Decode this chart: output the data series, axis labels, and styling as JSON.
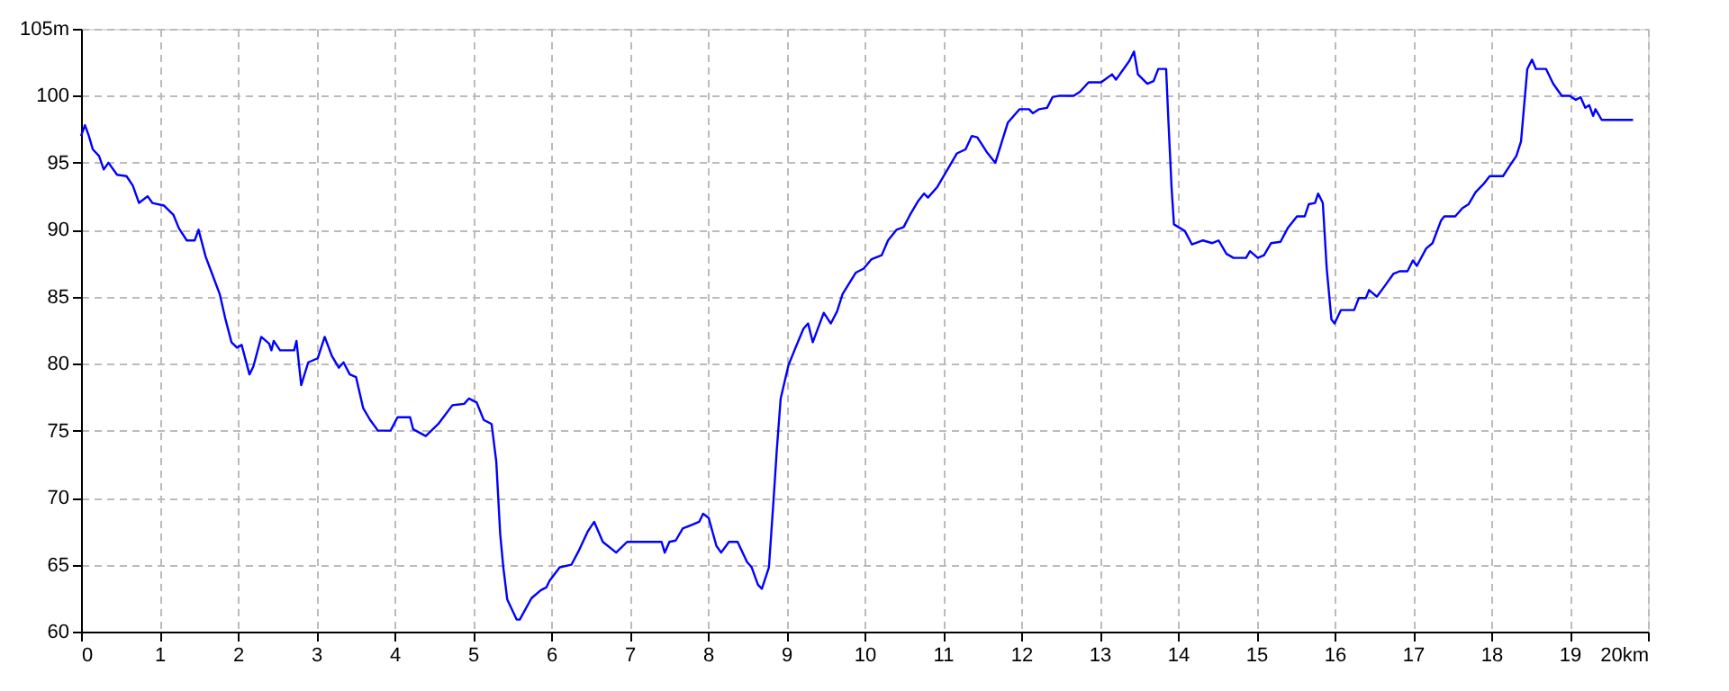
{
  "chart_data": {
    "type": "line",
    "x": [
      0,
      0.05,
      0.1,
      0.15,
      0.23,
      0.29,
      0.35,
      0.46,
      0.58,
      0.66,
      0.74,
      0.85,
      0.91,
      1.06,
      1.18,
      1.25,
      1.35,
      1.45,
      1.5,
      1.59,
      1.68,
      1.77,
      1.84,
      1.92,
      1.99,
      2.05,
      2.15,
      2.2,
      2.3,
      2.4,
      2.43,
      2.46,
      2.54,
      2.72,
      2.75,
      2.81,
      2.9,
      3.02,
      3.11,
      3.2,
      3.29,
      3.35,
      3.43,
      3.51,
      3.6,
      3.69,
      3.79,
      3.95,
      4.04,
      4.2,
      4.24,
      4.4,
      4.56,
      4.74,
      4.89,
      4.95,
      5.05,
      5.14,
      5.24,
      5.3,
      5.35,
      5.39,
      5.44,
      5.56,
      5.6,
      5.75,
      5.87,
      5.94,
      5.98,
      6.11,
      6.26,
      6.35,
      6.47,
      6.55,
      6.66,
      6.83,
      6.97,
      7.41,
      7.45,
      7.51,
      7.59,
      7.68,
      7.81,
      7.89,
      7.94,
      8.01,
      8.11,
      8.17,
      8.27,
      8.38,
      8.5,
      8.56,
      8.64,
      8.69,
      8.78,
      8.84,
      8.88,
      8.93,
      9.03,
      9.12,
      9.22,
      9.28,
      9.34,
      9.48,
      9.57,
      9.65,
      9.72,
      9.89,
      9.99,
      10.09,
      10.22,
      10.3,
      10.41,
      10.5,
      10.58,
      10.68,
      10.76,
      10.81,
      10.93,
      11.06,
      11.18,
      11.29,
      11.37,
      11.44,
      11.56,
      11.67,
      11.83,
      11.98,
      12.1,
      12.15,
      12.23,
      12.33,
      12.4,
      12.49,
      12.67,
      12.75,
      12.86,
      13.02,
      13.16,
      13.21,
      13.38,
      13.44,
      13.49,
      13.61,
      13.69,
      13.75,
      13.85,
      13.88,
      13.92,
      13.95,
      14.09,
      14.18,
      14.32,
      14.44,
      14.52,
      14.62,
      14.71,
      14.87,
      14.92,
      15.02,
      15.1,
      15.19,
      15.31,
      15.4,
      15.52,
      15.62,
      15.67,
      15.75,
      15.79,
      15.85,
      15.9,
      15.96,
      16.0,
      16.08,
      16.25,
      16.31,
      16.4,
      16.44,
      16.54,
      16.64,
      16.75,
      16.83,
      16.93,
      17.0,
      17.05,
      17.17,
      17.25,
      17.36,
      17.4,
      17.54,
      17.63,
      17.71,
      17.8,
      17.9,
      17.98,
      18.15,
      18.25,
      18.32,
      18.38,
      18.46,
      18.52,
      18.57,
      18.7,
      18.79,
      18.9,
      19.0,
      19.08,
      19.14,
      19.2,
      19.25,
      19.3,
      19.33,
      19.41,
      19.81
    ],
    "series": [
      {
        "color": "#0000ff",
        "values": [
          97,
          97.8,
          97,
          96,
          95.5,
          94.5,
          95,
          94.1,
          94,
          93.3,
          92,
          92.5,
          92,
          91.8,
          91.1,
          90.1,
          89.2,
          89.2,
          90,
          88,
          86.6,
          85.2,
          83.4,
          81.6,
          81.2,
          81.4,
          79.2,
          79.8,
          82,
          81.5,
          81,
          81.7,
          81,
          81,
          81.7,
          78.4,
          80.1,
          80.4,
          82,
          80.6,
          79.7,
          80.1,
          79.2,
          79,
          76.7,
          75.8,
          75,
          75,
          76,
          76,
          75.1,
          74.6,
          75.5,
          76.9,
          77,
          77.4,
          77.1,
          75.8,
          75.5,
          72.7,
          67.3,
          64.8,
          62.4,
          60.9,
          60.9,
          62.5,
          63.1,
          63.3,
          63.8,
          64.8,
          65,
          66,
          67.5,
          68.2,
          66.7,
          65.9,
          66.7,
          66.7,
          65.9,
          66.7,
          66.8,
          67.7,
          68,
          68.2,
          68.8,
          68.5,
          66.4,
          65.9,
          66.7,
          66.7,
          65.2,
          64.8,
          63.5,
          63.2,
          64.8,
          69.9,
          73.5,
          77.4,
          79.9,
          81.2,
          82.6,
          83,
          81.6,
          83.8,
          83,
          83.9,
          85.2,
          86.8,
          87.1,
          87.8,
          88.1,
          89.2,
          90,
          90.2,
          91.1,
          92.1,
          92.7,
          92.4,
          93.2,
          94.5,
          95.7,
          96,
          97,
          96.9,
          95.8,
          95,
          98,
          99,
          99,
          98.7,
          99,
          99.1,
          99.9,
          100,
          100,
          100.3,
          101,
          101,
          101.6,
          101.2,
          102.6,
          103.3,
          101.6,
          100.9,
          101.1,
          102,
          102,
          98,
          93.1,
          90.4,
          89.9,
          88.9,
          89.2,
          89,
          89.2,
          88.2,
          87.9,
          87.9,
          88.4,
          87.9,
          88.1,
          89,
          89.1,
          90.1,
          91,
          91,
          91.9,
          92,
          92.7,
          92,
          87.1,
          83.3,
          83,
          84,
          84,
          84.9,
          84.9,
          85.5,
          85,
          85.8,
          86.7,
          86.9,
          86.9,
          87.7,
          87.3,
          88.6,
          89,
          90.7,
          91,
          91,
          91.6,
          91.9,
          92.8,
          93.4,
          94,
          94,
          94.9,
          95.5,
          96.6,
          102,
          102.7,
          102,
          102,
          100.9,
          100,
          100,
          99.7,
          99.9,
          99.1,
          99.3,
          98.5,
          99,
          98.2,
          98.2
        ]
      }
    ],
    "xlim": [
      0,
      20
    ],
    "xticks": [
      0,
      1,
      2,
      3,
      4,
      5,
      6,
      7,
      8,
      9,
      10,
      11,
      12,
      13,
      14,
      15,
      16,
      17,
      18,
      19,
      {
        "value": 20,
        "label": "20km"
      }
    ],
    "ylim": [
      60,
      105
    ],
    "yticks": [
      60,
      65,
      70,
      75,
      80,
      85,
      90,
      95,
      100,
      {
        "value": 105,
        "label": "105m"
      }
    ],
    "grid": true,
    "line_style": "solid",
    "marker": "none"
  }
}
